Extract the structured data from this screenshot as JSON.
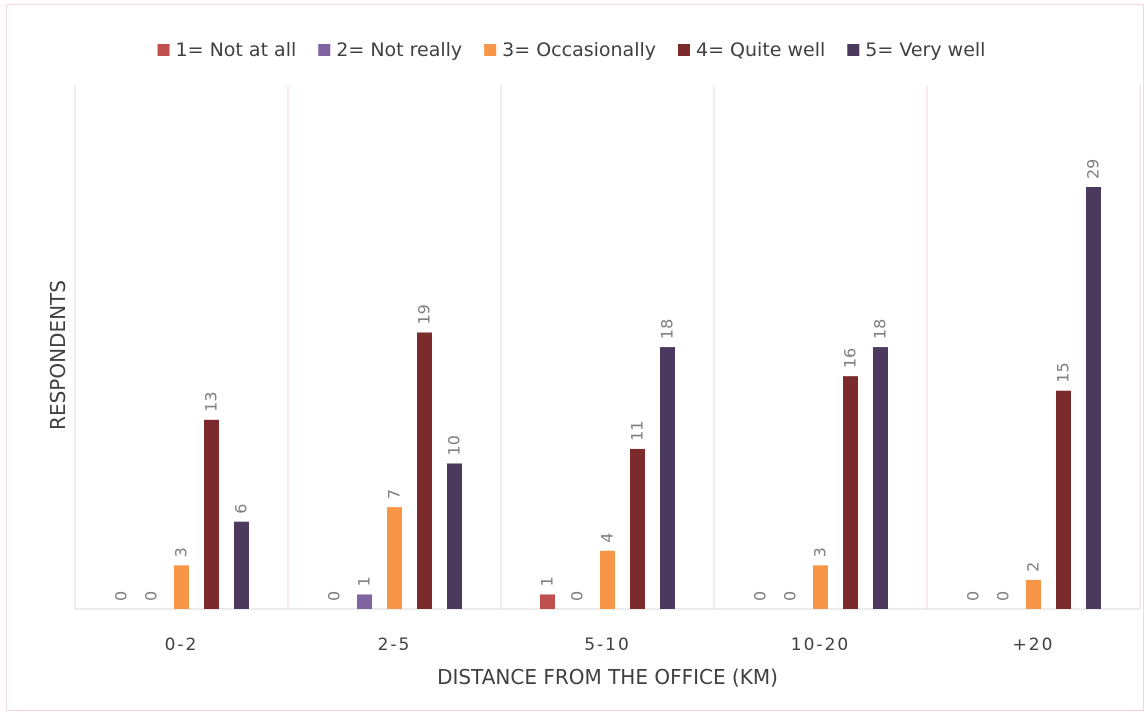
{
  "chart_data": {
    "type": "bar",
    "title": "",
    "xlabel": "DISTANCE FROM THE OFFICE (KM)",
    "ylabel": "RESPONDENTS",
    "categories": [
      "0-2",
      "2-5",
      "5-10",
      "10-20",
      "+20"
    ],
    "ylim": [
      0,
      31
    ],
    "grid": false,
    "legend_position": "top",
    "data_labels": true,
    "series": [
      {
        "name": "1= Not at all",
        "color": "#c0504d",
        "values": [
          0,
          0,
          1,
          0,
          0
        ]
      },
      {
        "name": "2= Not really",
        "color": "#8064a2",
        "values": [
          0,
          1,
          0,
          0,
          0
        ]
      },
      {
        "name": "3= Occasionally",
        "color": "#f79646",
        "values": [
          3,
          7,
          4,
          3,
          2
        ]
      },
      {
        "name": "4= Quite well",
        "color": "#7b2b2b",
        "values": [
          13,
          19,
          11,
          16,
          15
        ]
      },
      {
        "name": "5= Very well",
        "color": "#4b3a5e",
        "values": [
          6,
          10,
          18,
          18,
          29
        ]
      }
    ]
  }
}
